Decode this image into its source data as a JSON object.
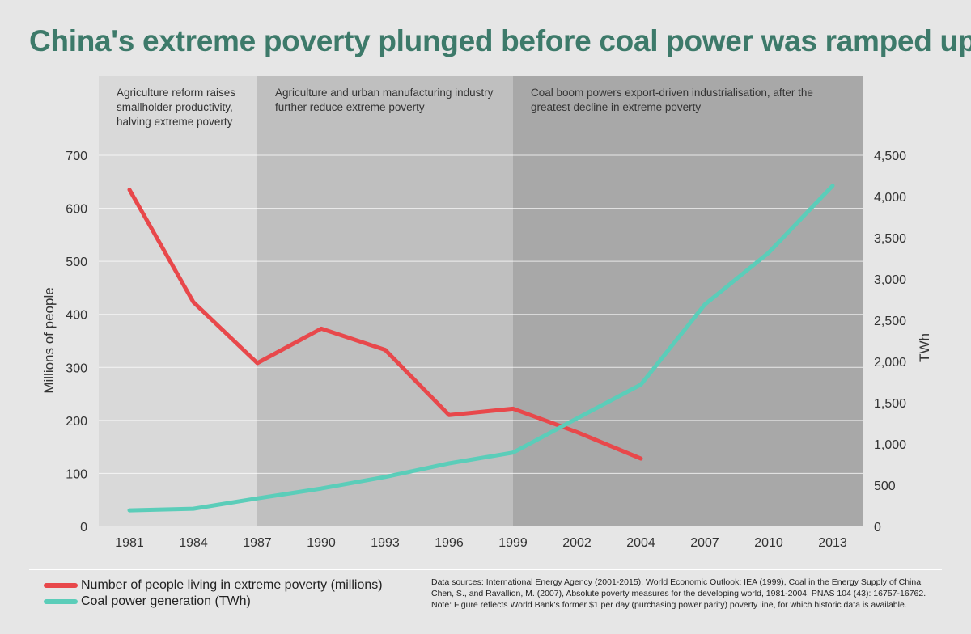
{
  "title": "China's extreme poverty plunged before coal power was ramped up",
  "chart_data": {
    "type": "line",
    "x": [
      1981,
      1984,
      1987,
      1990,
      1993,
      1996,
      1999,
      2002,
      2004,
      2007,
      2010,
      2013
    ],
    "x_tick_labels": [
      "1981",
      "1984",
      "1987",
      "1990",
      "1993",
      "1996",
      "1999",
      "2002",
      "2004",
      "2007",
      "2010",
      "2013"
    ],
    "ylabel": "Millions of people",
    "y2label": "TWh",
    "ylim": [
      0,
      700
    ],
    "y2lim": [
      0,
      4500
    ],
    "y_ticks": [
      0,
      100,
      200,
      300,
      400,
      500,
      600,
      700
    ],
    "y_tick_labels": [
      "0",
      "100",
      "200",
      "300",
      "400",
      "500",
      "600",
      "700"
    ],
    "y2_ticks": [
      0,
      500,
      1000,
      1500,
      2000,
      2500,
      3000,
      3500,
      4000,
      4500
    ],
    "y2_tick_labels": [
      "0",
      "500",
      "1,000",
      "1,500",
      "2,000",
      "2,500",
      "3,000",
      "3,500",
      "4,000",
      "4,500"
    ],
    "grid": true,
    "legend_position": "bottom-left",
    "eras": [
      {
        "start_index": 0,
        "end_index": 2,
        "shade": "#d9d9d9",
        "lines": [
          "Agriculture reform raises",
          "smallholder productivity,",
          "halving extreme poverty"
        ]
      },
      {
        "start_index": 2,
        "end_index": 6,
        "shade": "#bfbfbf",
        "lines": [
          "Agriculture and urban manufacturing industry",
          "further reduce extreme poverty"
        ]
      },
      {
        "start_index": 6,
        "end_index": 11,
        "shade": "#a8a8a8",
        "lines": [
          "Coal boom powers export-driven industrialisation, after the",
          "greatest decline in extreme poverty"
        ]
      }
    ],
    "series": [
      {
        "name": "Number of people living in extreme poverty (millions)",
        "axis": "left",
        "color": "#e8484b",
        "values": [
          635,
          423,
          308,
          373,
          333,
          210,
          222,
          178,
          128,
          null,
          null,
          null
        ]
      },
      {
        "name": "Coal power generation (TWh)",
        "axis": "right",
        "color": "#5bcdb9",
        "values": [
          195,
          215,
          340,
          460,
          600,
          765,
          895,
          1310,
          1720,
          2690,
          3320,
          4130
        ]
      }
    ]
  },
  "sources": [
    "Data sources: International Energy Agency (2001-2015), World Economic Outlook; IEA (1999), Coal in the Energy Supply of China;",
    "Chen, S., and Ravallion, M. (2007), Absolute poverty measures for the developing world, 1981-2004, PNAS 104 (43): 16757-16762.",
    "Note: Figure reflects World Bank's former $1 per day (purchasing power parity) poverty line, for which historic data is available."
  ]
}
